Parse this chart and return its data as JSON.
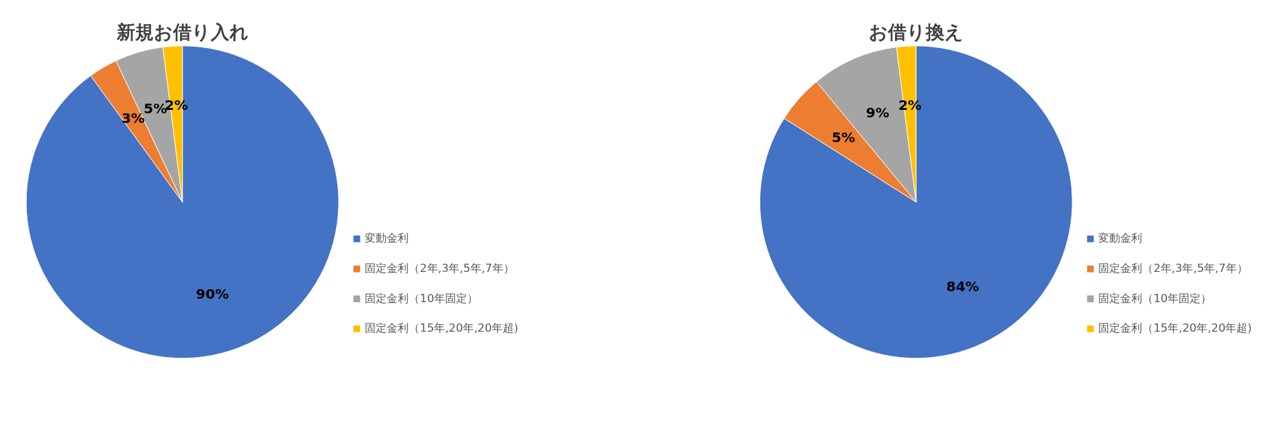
{
  "chart_data": [
    {
      "type": "pie",
      "title": "新規お借り入れ",
      "categories": [
        "変動金利",
        "固定金利（2年,3年,5年,7年）",
        "固定金利（10年固定）",
        "固定金利（15年,20年,20年超)"
      ],
      "values": [
        90,
        3,
        5,
        2
      ],
      "colors": [
        "#4472c4",
        "#ed7d31",
        "#a5a5a5",
        "#ffc000"
      ],
      "value_labels": [
        "90%",
        "3%",
        "5%",
        "2%"
      ],
      "legend": "right"
    },
    {
      "type": "pie",
      "title": "お借り換え",
      "categories": [
        "変動金利",
        "固定金利（2年,3年,5年,7年）",
        "固定金利（10年固定）",
        "固定金利（15年,20年,20年超)"
      ],
      "values": [
        84,
        5,
        9,
        2
      ],
      "colors": [
        "#4472c4",
        "#ed7d31",
        "#a5a5a5",
        "#ffc000"
      ],
      "value_labels": [
        "84%",
        "5%",
        "9%",
        "2%"
      ],
      "legend": "right"
    }
  ]
}
